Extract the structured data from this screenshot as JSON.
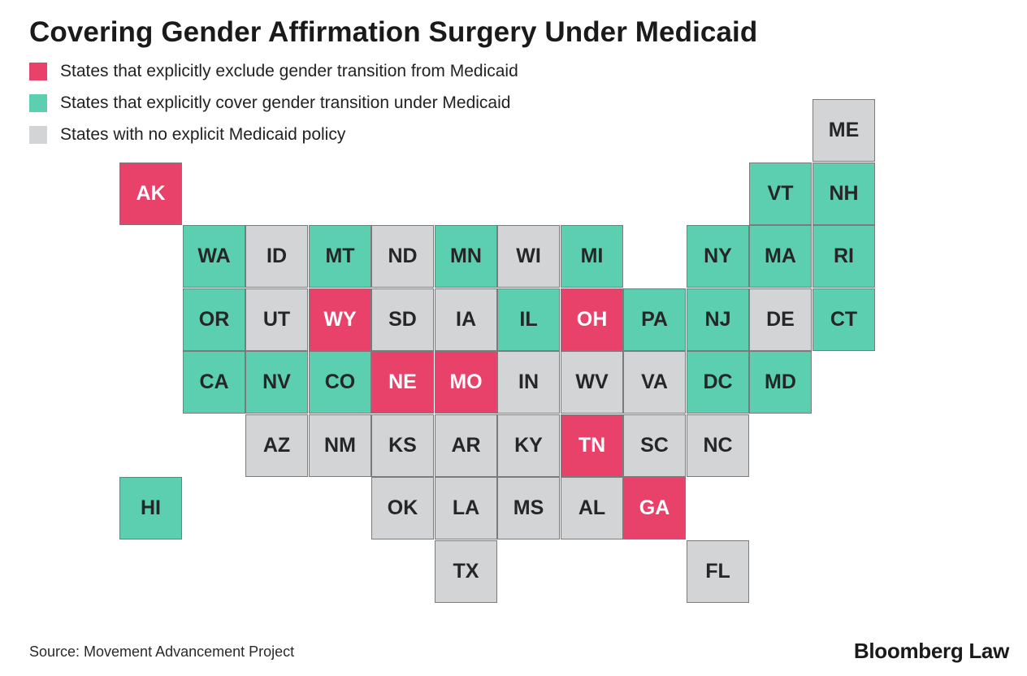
{
  "title": "Covering Gender Affirmation Surgery Under Medicaid",
  "colors": {
    "exclude": "#e8426a",
    "cover": "#5ccfb1",
    "none": "#d3d4d6"
  },
  "legend": [
    {
      "key": "exclude",
      "label": "States that explicitly exclude gender transition from Medicaid"
    },
    {
      "key": "cover",
      "label": "States that explicitly cover gender transition under Medicaid"
    },
    {
      "key": "none",
      "label": "States with no explicit Medicaid policy"
    }
  ],
  "states": [
    {
      "abbr": "ME",
      "status": "none",
      "col": 11,
      "row": 0
    },
    {
      "abbr": "AK",
      "status": "exclude",
      "col": 0,
      "row": 1
    },
    {
      "abbr": "VT",
      "status": "cover",
      "col": 10,
      "row": 1
    },
    {
      "abbr": "NH",
      "status": "cover",
      "col": 11,
      "row": 1
    },
    {
      "abbr": "WA",
      "status": "cover",
      "col": 1,
      "row": 2
    },
    {
      "abbr": "ID",
      "status": "none",
      "col": 2,
      "row": 2
    },
    {
      "abbr": "MT",
      "status": "cover",
      "col": 3,
      "row": 2
    },
    {
      "abbr": "ND",
      "status": "none",
      "col": 4,
      "row": 2
    },
    {
      "abbr": "MN",
      "status": "cover",
      "col": 5,
      "row": 2
    },
    {
      "abbr": "WI",
      "status": "none",
      "col": 6,
      "row": 2
    },
    {
      "abbr": "MI",
      "status": "cover",
      "col": 7,
      "row": 2
    },
    {
      "abbr": "NY",
      "status": "cover",
      "col": 9,
      "row": 2
    },
    {
      "abbr": "MA",
      "status": "cover",
      "col": 10,
      "row": 2
    },
    {
      "abbr": "RI",
      "status": "cover",
      "col": 11,
      "row": 2
    },
    {
      "abbr": "OR",
      "status": "cover",
      "col": 1,
      "row": 3
    },
    {
      "abbr": "UT",
      "status": "none",
      "col": 2,
      "row": 3
    },
    {
      "abbr": "WY",
      "status": "exclude",
      "col": 3,
      "row": 3
    },
    {
      "abbr": "SD",
      "status": "none",
      "col": 4,
      "row": 3
    },
    {
      "abbr": "IA",
      "status": "none",
      "col": 5,
      "row": 3
    },
    {
      "abbr": "IL",
      "status": "cover",
      "col": 6,
      "row": 3
    },
    {
      "abbr": "OH",
      "status": "exclude",
      "col": 7,
      "row": 3
    },
    {
      "abbr": "PA",
      "status": "cover",
      "col": 8,
      "row": 3
    },
    {
      "abbr": "NJ",
      "status": "cover",
      "col": 9,
      "row": 3
    },
    {
      "abbr": "DE",
      "status": "none",
      "col": 10,
      "row": 3
    },
    {
      "abbr": "CT",
      "status": "cover",
      "col": 11,
      "row": 3
    },
    {
      "abbr": "CA",
      "status": "cover",
      "col": 1,
      "row": 4
    },
    {
      "abbr": "NV",
      "status": "cover",
      "col": 2,
      "row": 4
    },
    {
      "abbr": "CO",
      "status": "cover",
      "col": 3,
      "row": 4
    },
    {
      "abbr": "NE",
      "status": "exclude",
      "col": 4,
      "row": 4
    },
    {
      "abbr": "MO",
      "status": "exclude",
      "col": 5,
      "row": 4
    },
    {
      "abbr": "IN",
      "status": "none",
      "col": 6,
      "row": 4
    },
    {
      "abbr": "WV",
      "status": "none",
      "col": 7,
      "row": 4
    },
    {
      "abbr": "VA",
      "status": "none",
      "col": 8,
      "row": 4
    },
    {
      "abbr": "DC",
      "status": "cover",
      "col": 9,
      "row": 4
    },
    {
      "abbr": "MD",
      "status": "cover",
      "col": 10,
      "row": 4
    },
    {
      "abbr": "AZ",
      "status": "none",
      "col": 2,
      "row": 5
    },
    {
      "abbr": "NM",
      "status": "none",
      "col": 3,
      "row": 5
    },
    {
      "abbr": "KS",
      "status": "none",
      "col": 4,
      "row": 5
    },
    {
      "abbr": "AR",
      "status": "none",
      "col": 5,
      "row": 5
    },
    {
      "abbr": "KY",
      "status": "none",
      "col": 6,
      "row": 5
    },
    {
      "abbr": "TN",
      "status": "exclude",
      "col": 7,
      "row": 5
    },
    {
      "abbr": "SC",
      "status": "none",
      "col": 8,
      "row": 5
    },
    {
      "abbr": "NC",
      "status": "none",
      "col": 9,
      "row": 5
    },
    {
      "abbr": "HI",
      "status": "cover",
      "col": 0,
      "row": 6
    },
    {
      "abbr": "OK",
      "status": "none",
      "col": 4,
      "row": 6
    },
    {
      "abbr": "LA",
      "status": "none",
      "col": 5,
      "row": 6
    },
    {
      "abbr": "MS",
      "status": "none",
      "col": 6,
      "row": 6
    },
    {
      "abbr": "AL",
      "status": "none",
      "col": 7,
      "row": 6
    },
    {
      "abbr": "GA",
      "status": "exclude",
      "col": 8,
      "row": 6
    },
    {
      "abbr": "TX",
      "status": "none",
      "col": 5,
      "row": 7
    },
    {
      "abbr": "FL",
      "status": "none",
      "col": 9,
      "row": 7
    }
  ],
  "source": "Source: Movement Advancement Project",
  "brand": "Bloomberg Law"
}
